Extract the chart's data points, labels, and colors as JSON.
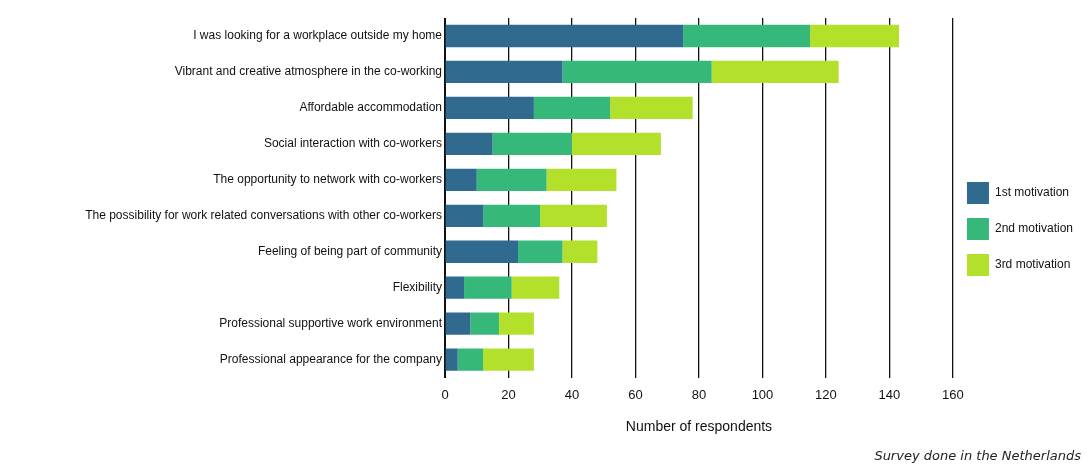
{
  "chart_data": {
    "type": "bar",
    "orientation": "horizontal",
    "stacked": true,
    "xlabel": "Number of respondents",
    "categories": [
      "I was looking for a workplace outside my home",
      "Vibrant and creative atmosphere in the co-working",
      "Affordable accommodation",
      "Social interaction with co-workers",
      "The opportunity to network with co-workers",
      "The possibility for work related conversations with other co-workers",
      "Feeling of being part of community",
      "Flexibility",
      "Professional supportive work environment",
      "Professional appearance for the company"
    ],
    "series": [
      {
        "name": "1st motivation",
        "color": "#306a8e",
        "values": [
          75,
          37,
          28,
          15,
          10,
          12,
          23,
          6,
          8,
          4
        ]
      },
      {
        "name": "2nd motivation",
        "color": "#36b87b",
        "values": [
          40,
          47,
          24,
          25,
          22,
          18,
          14,
          15,
          9,
          8
        ]
      },
      {
        "name": "3rd motivation",
        "color": "#b3e02b",
        "values": [
          28,
          40,
          26,
          28,
          22,
          21,
          11,
          15,
          11,
          16
        ]
      }
    ],
    "xlim": [
      0,
      160
    ],
    "xticks": [
      0,
      20,
      40,
      60,
      80,
      100,
      120,
      140,
      160
    ],
    "grid": "x",
    "legend": "right",
    "annotations": [
      "Survey done in the Netherlands"
    ]
  }
}
